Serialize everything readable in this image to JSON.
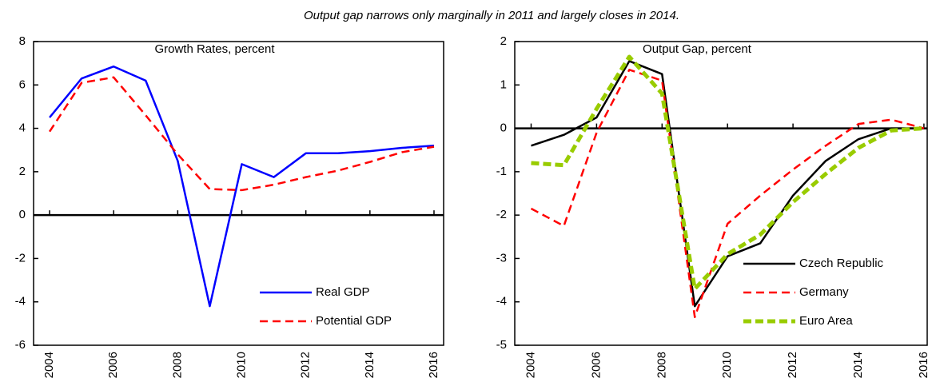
{
  "title": "Output gap narrows only marginally  in 2011 and largely closes in 2014.",
  "chart_data": [
    {
      "type": "line",
      "title": "Growth Rates, percent",
      "x": [
        2004,
        2005,
        2006,
        2007,
        2008,
        2009,
        2010,
        2011,
        2012,
        2013,
        2014,
        2015,
        2016
      ],
      "series": [
        {
          "name": "Real GDP",
          "color": "#0000ff",
          "line_style": "solid",
          "values": [
            4.5,
            6.3,
            6.85,
            6.2,
            2.5,
            -4.2,
            2.35,
            1.75,
            2.85,
            2.85,
            2.95,
            3.1,
            3.2
          ]
        },
        {
          "name": "Potential GDP",
          "color": "#ff0000",
          "line_style": "dashed",
          "values": [
            3.85,
            6.1,
            6.35,
            4.6,
            2.8,
            1.2,
            1.15,
            1.4,
            1.75,
            2.05,
            2.45,
            2.9,
            3.15
          ]
        }
      ],
      "xlim": [
        2003.5,
        2016.3
      ],
      "xticks": [
        2004,
        2006,
        2008,
        2010,
        2012,
        2014,
        2016
      ],
      "ylim": [
        -6,
        8
      ],
      "yticks": [
        -6,
        -4,
        -2,
        0,
        2,
        4,
        6,
        8
      ],
      "grid": false,
      "legend": "lower right"
    },
    {
      "type": "line",
      "title": "Output Gap, percent",
      "x": [
        2004,
        2005,
        2006,
        2007,
        2008,
        2009,
        2010,
        2011,
        2012,
        2013,
        2014,
        2015,
        2016
      ],
      "series": [
        {
          "name": "Czech Republic",
          "color": "#000000",
          "line_style": "solid",
          "values": [
            -0.4,
            -0.15,
            0.25,
            1.55,
            1.25,
            -4.1,
            -2.95,
            -2.65,
            -1.55,
            -0.75,
            -0.25,
            0,
            0
          ]
        },
        {
          "name": "Germany",
          "color": "#ff0000",
          "line_style": "dashed",
          "values": [
            -1.85,
            -2.25,
            -0.1,
            1.35,
            1.1,
            -4.35,
            -2.2,
            -1.55,
            -0.95,
            -0.4,
            0.1,
            0.2,
            0
          ]
        },
        {
          "name": "Euro Area",
          "color": "#99cc00",
          "line_style": "thick-dashed",
          "values": [
            -0.8,
            -0.85,
            0.45,
            1.65,
            0.8,
            -3.7,
            -2.9,
            -2.45,
            -1.7,
            -1.05,
            -0.45,
            -0.05,
            0
          ]
        }
      ],
      "xlim": [
        2003.5,
        2016.1
      ],
      "xticks": [
        2004,
        2006,
        2008,
        2010,
        2012,
        2014,
        2016
      ],
      "ylim": [
        -5,
        2
      ],
      "yticks": [
        -5,
        -4,
        -3,
        -2,
        -1,
        0,
        1,
        2
      ],
      "grid": false,
      "legend": "lower right"
    }
  ]
}
